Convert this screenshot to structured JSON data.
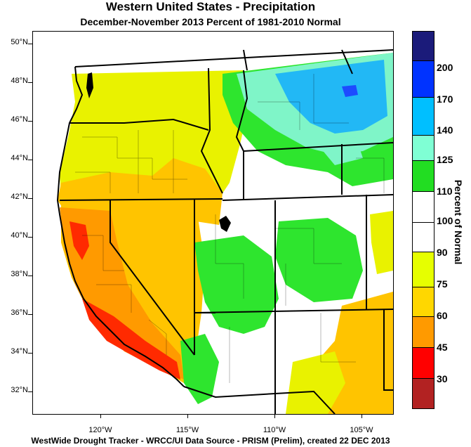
{
  "title": "Western United States - Precipitation",
  "subtitle": "December-November 2013  Percent of 1981-2010 Normal",
  "footer": "WestWide Drought Tracker - WRCC/UI  Data Source - PRISM (Prelim), created 22 DEC 2013",
  "map": {
    "latitude_labels": [
      "50°N",
      "48°N",
      "46°N",
      "44°N",
      "42°N",
      "40°N",
      "38°N",
      "36°N",
      "34°N",
      "32°N"
    ],
    "longitude_labels": [
      "120°W",
      "115°W",
      "110°W",
      "105°W"
    ]
  },
  "legend": {
    "title": "Percent of Normal",
    "bins": [
      {
        "color": "#b22222",
        "label": ""
      },
      {
        "color": "#ff0000",
        "label": "30"
      },
      {
        "color": "#ff8c00",
        "label": "45"
      },
      {
        "color": "#ffc400",
        "label": "60"
      },
      {
        "color": "#ffd700",
        "label": "75"
      },
      {
        "color": "#e6ff00",
        "label": "90"
      },
      {
        "color": "#ffffff",
        "label": "100"
      },
      {
        "color": "#ffffff",
        "label": "110"
      },
      {
        "color": "#22dd22",
        "label": "125"
      },
      {
        "color": "#7fffd4",
        "label": "140"
      },
      {
        "color": "#00bfff",
        "label": "170"
      },
      {
        "color": "#0033ff",
        "label": "200"
      },
      {
        "color": "#1b1b7a",
        "label": ""
      }
    ]
  },
  "colors": {
    "red": "#ff2a00",
    "orange": "#ff9a00",
    "amber": "#ffc400",
    "yellow": "#e9f200",
    "white": "#ffffff",
    "green": "#2ee52e",
    "aqua": "#7ff5c8",
    "sky": "#22b8f5",
    "blue": "#1d4bff",
    "border": "#000000"
  }
}
